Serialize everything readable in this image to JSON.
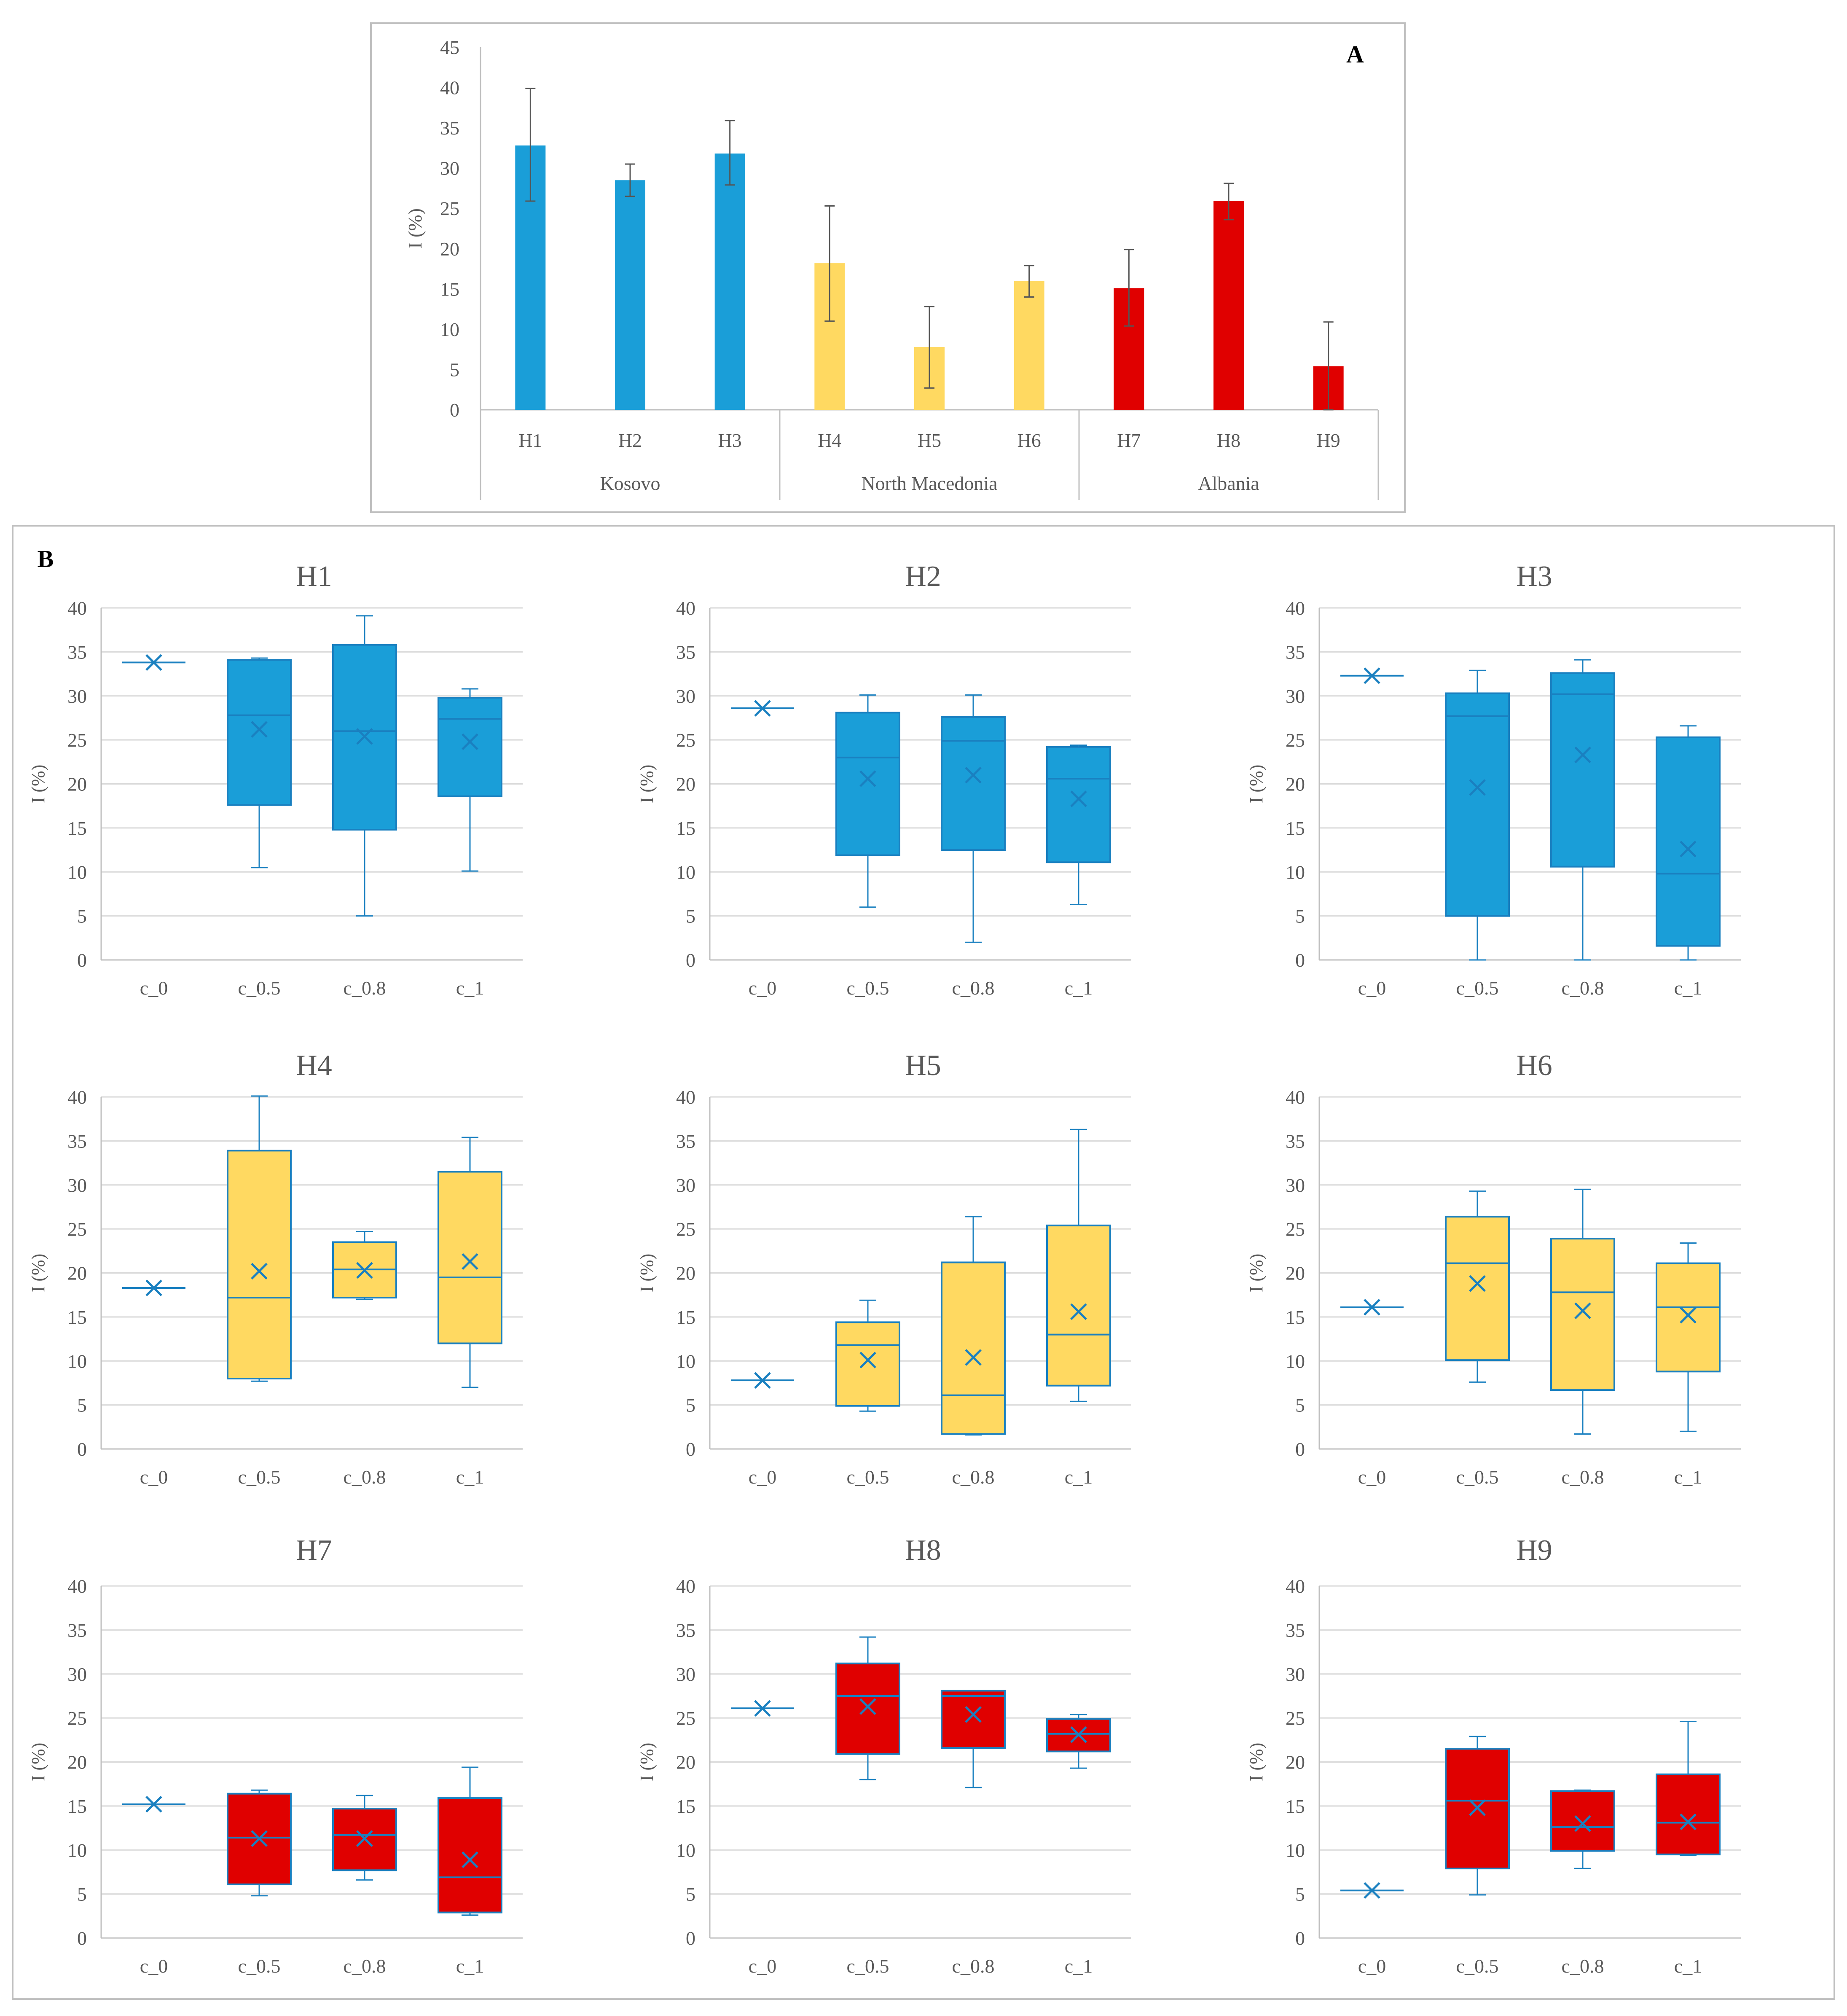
{
  "colors": {
    "kosovo": "#1A9ED8",
    "north_macedonia": "#FFD961",
    "albania": "#E00000",
    "box_stroke": "#1A80C0",
    "error_bar": "#555555",
    "grid": "#D9D9D9",
    "axis": "#BFBFBF",
    "text": "#595959",
    "frame": "#BFBFBF"
  },
  "panel_a": {
    "label": "A",
    "ylabel": "I (%)",
    "groups": [
      "Kosovo",
      "North Macedonia",
      "Albania"
    ]
  },
  "panel_b": {
    "label": "B",
    "ylabel": "I (%)"
  },
  "chart_data": [
    {
      "type": "bar",
      "panel": "A",
      "title": "",
      "xlabel": "",
      "ylabel": "I (%)",
      "ylim": [
        0,
        45
      ],
      "yticks": [
        0,
        5,
        10,
        15,
        20,
        25,
        30,
        35,
        40,
        45
      ],
      "categories": [
        "H1",
        "H2",
        "H3",
        "H4",
        "H5",
        "H6",
        "H7",
        "H8",
        "H9"
      ],
      "values": [
        32.8,
        28.5,
        31.8,
        18.2,
        7.8,
        16.0,
        15.1,
        25.9,
        5.4
      ],
      "error_low": [
        25.9,
        26.5,
        27.9,
        11.0,
        2.7,
        14.0,
        10.4,
        23.6,
        0.0
      ],
      "error_high": [
        39.9,
        30.5,
        35.9,
        25.3,
        12.8,
        17.9,
        19.9,
        28.1,
        10.9
      ],
      "groups": [
        {
          "name": "Kosovo",
          "members": [
            "H1",
            "H2",
            "H3"
          ],
          "color_key": "kosovo"
        },
        {
          "name": "North Macedonia",
          "members": [
            "H4",
            "H5",
            "H6"
          ],
          "color_key": "north_macedonia"
        },
        {
          "name": "Albania",
          "members": [
            "H7",
            "H8",
            "H9"
          ],
          "color_key": "albania"
        }
      ]
    },
    {
      "type": "box",
      "panel": "B",
      "title": "H1",
      "ylabel": "I (%)",
      "ylim": [
        0,
        40
      ],
      "yticks": [
        0,
        5,
        10,
        15,
        20,
        25,
        30,
        35,
        40
      ],
      "categories": [
        "c_0",
        "c_0.5",
        "c_0.8",
        "c_1"
      ],
      "color_key": "kosovo",
      "boxes": [
        {
          "min": 33.8,
          "q1": 33.8,
          "median": 33.8,
          "q3": 33.8,
          "max": 33.8,
          "mean": 33.8
        },
        {
          "min": 10.5,
          "q1": 17.6,
          "median": 27.8,
          "q3": 34.1,
          "max": 34.3,
          "mean": 26.2
        },
        {
          "min": 5.0,
          "q1": 14.8,
          "median": 26.0,
          "q3": 35.8,
          "max": 39.1,
          "mean": 25.4
        },
        {
          "min": 10.1,
          "q1": 18.6,
          "median": 27.4,
          "q3": 29.8,
          "max": 30.8,
          "mean": 24.8
        }
      ]
    },
    {
      "type": "box",
      "panel": "B",
      "title": "H2",
      "ylabel": "I (%)",
      "ylim": [
        0,
        40
      ],
      "yticks": [
        0,
        5,
        10,
        15,
        20,
        25,
        30,
        35,
        40
      ],
      "categories": [
        "c_0",
        "c_0.5",
        "c_0.8",
        "c_1"
      ],
      "color_key": "kosovo",
      "boxes": [
        {
          "min": 28.6,
          "q1": 28.6,
          "median": 28.6,
          "q3": 28.6,
          "max": 28.6,
          "mean": 28.6
        },
        {
          "min": 6.0,
          "q1": 11.9,
          "median": 23.0,
          "q3": 28.1,
          "max": 30.1,
          "mean": 20.6
        },
        {
          "min": 2.0,
          "q1": 12.5,
          "median": 24.9,
          "q3": 27.6,
          "max": 30.1,
          "mean": 21.0
        },
        {
          "min": 6.3,
          "q1": 11.1,
          "median": 20.6,
          "q3": 24.2,
          "max": 24.4,
          "mean": 18.3
        }
      ]
    },
    {
      "type": "box",
      "panel": "B",
      "title": "H3",
      "ylabel": "I (%)",
      "ylim": [
        0,
        40
      ],
      "yticks": [
        0,
        5,
        10,
        15,
        20,
        25,
        30,
        35,
        40
      ],
      "categories": [
        "c_0",
        "c_0.5",
        "c_0.8",
        "c_1"
      ],
      "color_key": "kosovo",
      "boxes": [
        {
          "min": 32.3,
          "q1": 32.3,
          "median": 32.3,
          "q3": 32.3,
          "max": 32.3,
          "mean": 32.3
        },
        {
          "min": 0.0,
          "q1": 5.0,
          "median": 27.7,
          "q3": 30.3,
          "max": 32.9,
          "mean": 19.6
        },
        {
          "min": 0.0,
          "q1": 10.6,
          "median": 30.2,
          "q3": 32.6,
          "max": 34.1,
          "mean": 23.3
        },
        {
          "min": 0.0,
          "q1": 1.6,
          "median": 9.8,
          "q3": 25.3,
          "max": 26.6,
          "mean": 12.6
        }
      ]
    },
    {
      "type": "box",
      "panel": "B",
      "title": "H4",
      "ylabel": "I (%)",
      "ylim": [
        0,
        40
      ],
      "yticks": [
        0,
        5,
        10,
        15,
        20,
        25,
        30,
        35,
        40
      ],
      "categories": [
        "c_0",
        "c_0.5",
        "c_0.8",
        "c_1"
      ],
      "color_key": "north_macedonia",
      "boxes": [
        {
          "min": 18.3,
          "q1": 18.3,
          "median": 18.3,
          "q3": 18.3,
          "max": 18.3,
          "mean": 18.3
        },
        {
          "min": 7.7,
          "q1": 8.0,
          "median": 17.2,
          "q3": 33.9,
          "max": 40.1,
          "mean": 20.2
        },
        {
          "min": 17.0,
          "q1": 17.2,
          "median": 20.4,
          "q3": 23.5,
          "max": 24.7,
          "mean": 20.3
        },
        {
          "min": 7.0,
          "q1": 12.0,
          "median": 19.5,
          "q3": 31.5,
          "max": 35.4,
          "mean": 21.3
        }
      ]
    },
    {
      "type": "box",
      "panel": "B",
      "title": "H5",
      "ylabel": "I (%)",
      "ylim": [
        0,
        40
      ],
      "yticks": [
        0,
        5,
        10,
        15,
        20,
        25,
        30,
        35,
        40
      ],
      "categories": [
        "c_0",
        "c_0.5",
        "c_0.8",
        "c_1"
      ],
      "color_key": "north_macedonia",
      "boxes": [
        {
          "min": 7.8,
          "q1": 7.8,
          "median": 7.8,
          "q3": 7.8,
          "max": 7.8,
          "mean": 7.8
        },
        {
          "min": 4.3,
          "q1": 4.9,
          "median": 11.8,
          "q3": 14.4,
          "max": 16.9,
          "mean": 10.1
        },
        {
          "min": 1.6,
          "q1": 1.7,
          "median": 6.1,
          "q3": 21.2,
          "max": 26.4,
          "mean": 10.4
        },
        {
          "min": 5.4,
          "q1": 7.2,
          "median": 13.0,
          "q3": 25.4,
          "max": 36.3,
          "mean": 15.6
        }
      ]
    },
    {
      "type": "box",
      "panel": "B",
      "title": "H6",
      "ylabel": "I (%)",
      "ylim": [
        0,
        40
      ],
      "yticks": [
        0,
        5,
        10,
        15,
        20,
        25,
        30,
        35,
        40
      ],
      "categories": [
        "c_0",
        "c_0.5",
        "c_0.8",
        "c_1"
      ],
      "color_key": "north_macedonia",
      "boxes": [
        {
          "min": 16.1,
          "q1": 16.1,
          "median": 16.1,
          "q3": 16.1,
          "max": 16.1,
          "mean": 16.1
        },
        {
          "min": 7.6,
          "q1": 10.1,
          "median": 21.1,
          "q3": 26.4,
          "max": 29.3,
          "mean": 18.8
        },
        {
          "min": 1.7,
          "q1": 6.7,
          "median": 17.8,
          "q3": 23.9,
          "max": 29.5,
          "mean": 15.7
        },
        {
          "min": 2.0,
          "q1": 8.8,
          "median": 16.1,
          "q3": 21.1,
          "max": 23.4,
          "mean": 15.2
        }
      ]
    },
    {
      "type": "box",
      "panel": "B",
      "title": "H7",
      "ylabel": "I (%)",
      "ylim": [
        0,
        40
      ],
      "yticks": [
        0,
        5,
        10,
        15,
        20,
        25,
        30,
        35,
        40
      ],
      "categories": [
        "c_0",
        "c_0.5",
        "c_0.8",
        "c_1"
      ],
      "color_key": "albania",
      "boxes": [
        {
          "min": 15.2,
          "q1": 15.2,
          "median": 15.2,
          "q3": 15.2,
          "max": 15.2,
          "mean": 15.2
        },
        {
          "min": 4.8,
          "q1": 6.1,
          "median": 11.4,
          "q3": 16.4,
          "max": 16.8,
          "mean": 11.3
        },
        {
          "min": 6.6,
          "q1": 7.7,
          "median": 11.7,
          "q3": 14.7,
          "max": 16.2,
          "mean": 11.3
        },
        {
          "min": 2.6,
          "q1": 2.9,
          "median": 6.9,
          "q3": 15.9,
          "max": 19.4,
          "mean": 8.9
        }
      ]
    },
    {
      "type": "box",
      "panel": "B",
      "title": "H8",
      "ylabel": "I (%)",
      "ylim": [
        0,
        40
      ],
      "yticks": [
        0,
        5,
        10,
        15,
        20,
        25,
        30,
        35,
        40
      ],
      "categories": [
        "c_0",
        "c_0.5",
        "c_0.8",
        "c_1"
      ],
      "color_key": "albania",
      "boxes": [
        {
          "min": 26.1,
          "q1": 26.1,
          "median": 26.1,
          "q3": 26.1,
          "max": 26.1,
          "mean": 26.1
        },
        {
          "min": 18.0,
          "q1": 20.9,
          "median": 27.5,
          "q3": 31.2,
          "max": 34.2,
          "mean": 26.3
        },
        {
          "min": 17.1,
          "q1": 21.6,
          "median": 27.5,
          "q3": 28.1,
          "max": 28.1,
          "mean": 25.4
        },
        {
          "min": 19.3,
          "q1": 21.2,
          "median": 23.2,
          "q3": 24.9,
          "max": 25.4,
          "mean": 23.1
        }
      ]
    },
    {
      "type": "box",
      "panel": "B",
      "title": "H9",
      "ylabel": "I (%)",
      "ylim": [
        0,
        40
      ],
      "yticks": [
        0,
        5,
        10,
        15,
        20,
        25,
        30,
        35,
        40
      ],
      "categories": [
        "c_0",
        "c_0.5",
        "c_0.8",
        "c_1"
      ],
      "color_key": "albania",
      "boxes": [
        {
          "min": 5.4,
          "q1": 5.4,
          "median": 5.4,
          "q3": 5.4,
          "max": 5.4,
          "mean": 5.4
        },
        {
          "min": 4.9,
          "q1": 7.9,
          "median": 15.6,
          "q3": 21.5,
          "max": 22.9,
          "mean": 14.8
        },
        {
          "min": 7.9,
          "q1": 9.9,
          "median": 12.6,
          "q3": 16.7,
          "max": 16.8,
          "mean": 13.0
        },
        {
          "min": 9.4,
          "q1": 9.5,
          "median": 13.1,
          "q3": 18.6,
          "max": 24.6,
          "mean": 13.2
        }
      ]
    }
  ]
}
